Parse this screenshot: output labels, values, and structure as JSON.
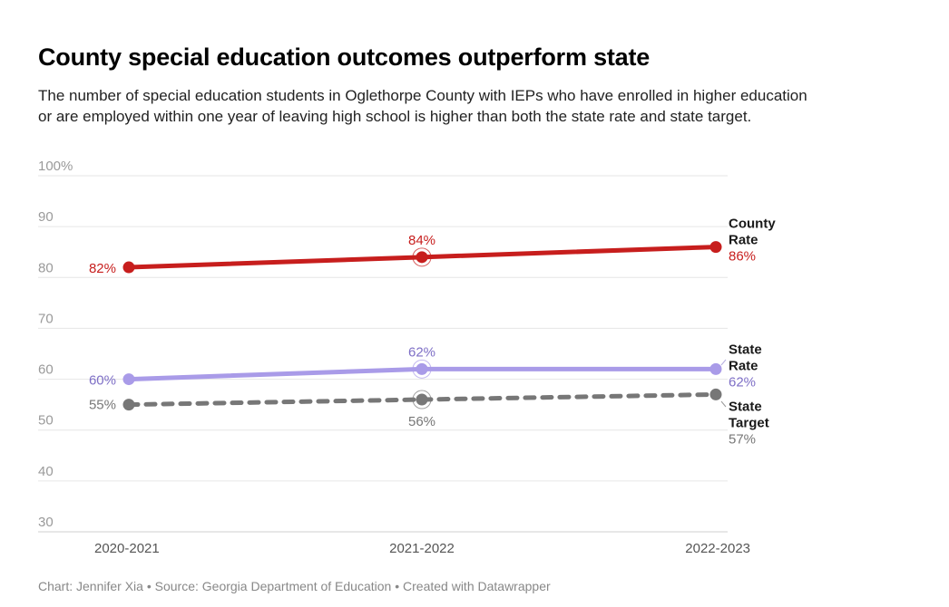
{
  "title": "County special education outcomes outperform state",
  "subtitle": "The number of special education students in Oglethorpe County with IEPs who have enrolled in higher education or are employed within one year of leaving high school is higher than both the state rate and state target.",
  "footer": "Chart: Jennifer Xia • Source: Georgia Department of Education • Created with Datawrapper",
  "chart_data": {
    "type": "line",
    "categories": [
      "2020-2021",
      "2021-2022",
      "2022-2023"
    ],
    "y_ticks": [
      "100%",
      "90",
      "80",
      "70",
      "60",
      "50",
      "40",
      "30"
    ],
    "ylim": [
      30,
      100
    ],
    "grid": true,
    "legend": "right (direct labels)",
    "series": [
      {
        "name": [
          "County",
          "Rate"
        ],
        "values": [
          82,
          84,
          86
        ],
        "labels": [
          "82%",
          "84%",
          "86%"
        ],
        "color": "#c71e1d",
        "dashed": false
      },
      {
        "name": [
          "State",
          "Rate"
        ],
        "values": [
          60,
          62,
          62
        ],
        "labels": [
          "60%",
          "62%",
          "62%"
        ],
        "color": "#a99be8",
        "label_color": "#7e6fc6",
        "dashed": false
      },
      {
        "name": [
          "State",
          "Target"
        ],
        "values": [
          55,
          56,
          57
        ],
        "labels": [
          "55%",
          "56%",
          "57%"
        ],
        "color": "#777777",
        "label_color": "#777777",
        "dashed": true
      }
    ]
  }
}
